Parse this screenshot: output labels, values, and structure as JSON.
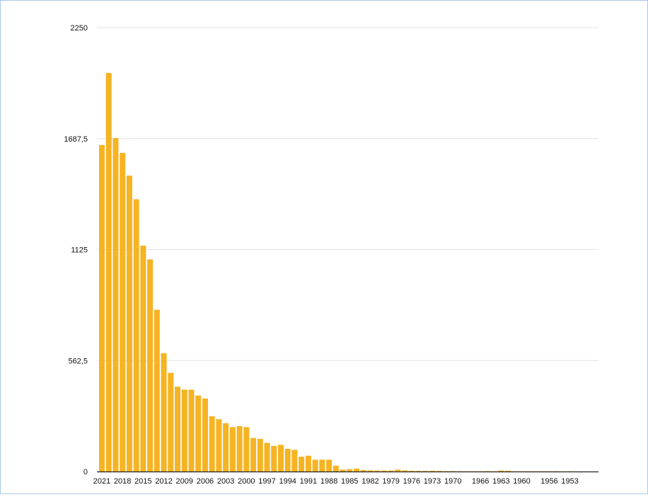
{
  "chart_data": {
    "type": "bar",
    "categories": [
      "2021",
      "2020",
      "2019",
      "2018",
      "2017",
      "2016",
      "2015",
      "2014",
      "2013",
      "2012",
      "2011",
      "2010",
      "2009",
      "2008",
      "2007",
      "2006",
      "2005",
      "2004",
      "2003",
      "2002",
      "2001",
      "2000",
      "1999",
      "1998",
      "1997",
      "1996",
      "1995",
      "1994",
      "1993",
      "1992",
      "1991",
      "1990",
      "1989",
      "1988",
      "1987",
      "1986",
      "1985",
      "1984",
      "1983",
      "1982",
      "1981",
      "1980",
      "1979",
      "1978",
      "1977",
      "1976",
      "1975",
      "1974",
      "1973",
      "1972",
      "1971",
      "1970",
      "1969",
      "1968",
      "1967",
      "1966",
      "1965",
      "1964",
      "1963",
      "1962",
      "1961",
      "1960",
      "1959",
      "1958",
      "1957",
      "1956",
      "1955",
      "1954",
      "1953",
      "1952",
      "1951"
    ],
    "values": [
      1655,
      2020,
      1690,
      1615,
      1500,
      1380,
      1145,
      1075,
      820,
      600,
      500,
      430,
      415,
      415,
      385,
      370,
      280,
      265,
      245,
      225,
      230,
      225,
      170,
      165,
      145,
      130,
      135,
      115,
      110,
      75,
      80,
      60,
      60,
      60,
      30,
      10,
      12,
      15,
      8,
      6,
      5,
      5,
      5,
      10,
      6,
      4,
      3,
      3,
      4,
      3,
      2,
      2,
      1,
      1,
      1,
      1,
      2,
      1,
      5,
      4,
      1,
      1,
      1,
      1,
      1,
      1,
      1,
      0,
      1,
      0,
      0
    ],
    "tick_labels": [
      "2021",
      "2018",
      "2015",
      "2012",
      "2009",
      "2006",
      "2003",
      "2000",
      "1997",
      "1994",
      "1991",
      "1988",
      "1985",
      "1982",
      "1979",
      "1976",
      "1973",
      "1970",
      "1966",
      "1963",
      "1960",
      "1956",
      "1953"
    ],
    "y_ticks": [
      "0",
      "562,5",
      "1125",
      "1687,5",
      "2250"
    ],
    "y_tick_values": [
      0,
      562.5,
      1125,
      1687.5,
      2250
    ],
    "ylim": [
      0,
      2250
    ],
    "grid": true,
    "legend": "none",
    "colors": {
      "bar": "#f6b323",
      "grid": "#e3e3e3",
      "axis": "#222222",
      "frame": "#a9c8e8"
    }
  }
}
